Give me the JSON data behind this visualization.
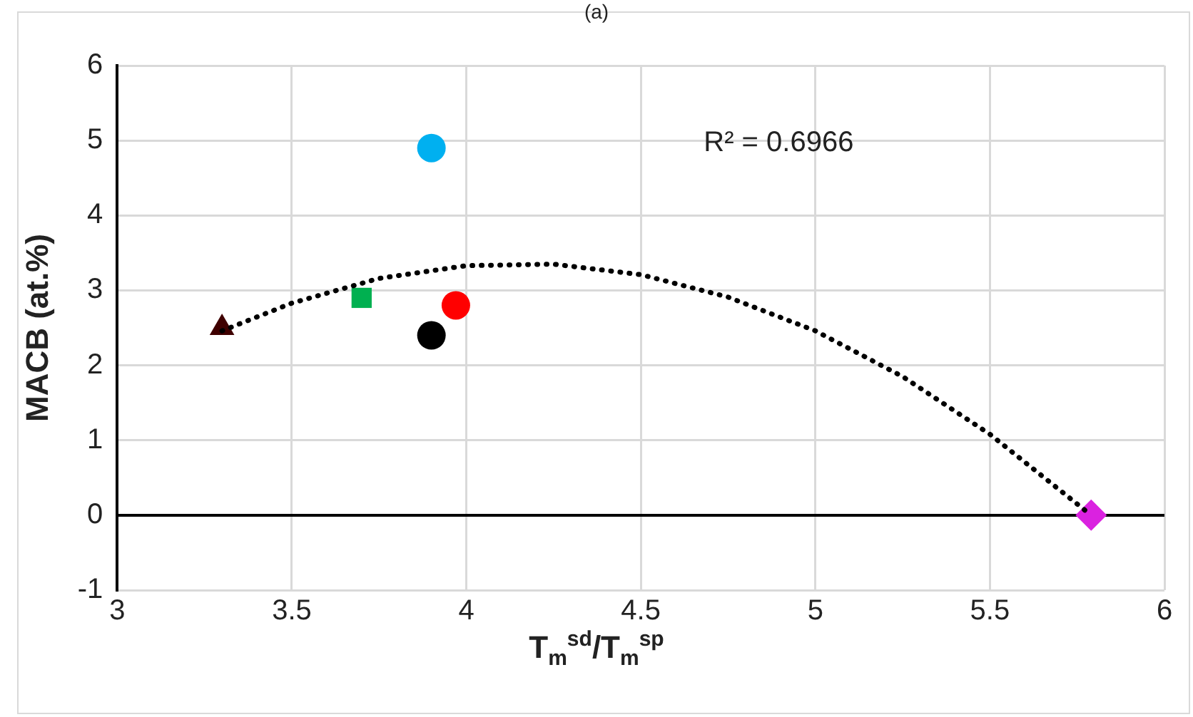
{
  "chart_data": {
    "type": "scatter",
    "title": "(a)",
    "xlabel": "T$_{m}$$^{sd}$/T$_{m}$$^{sp}$",
    "ylabel": "MACB (at.%)",
    "xlim": [
      3,
      6
    ],
    "xticks": [
      3,
      3.5,
      4,
      4.5,
      5,
      5.5,
      6
    ],
    "ylim": [
      -1,
      6
    ],
    "yticks": [
      -1,
      0,
      1,
      2,
      3,
      4,
      5,
      6
    ],
    "grid": true,
    "legend": false,
    "annotations": [
      "R² = 0.6966"
    ],
    "series": [
      {
        "type": "line",
        "color": "#000000",
        "marker": "none",
        "line_style": "dotted",
        "x": [
          3.3,
          3.5,
          3.75,
          4.0,
          4.25,
          4.5,
          4.75,
          5.0,
          5.25,
          5.5,
          5.79
        ],
        "values": [
          2.46,
          2.83,
          3.16,
          3.33,
          3.35,
          3.21,
          2.91,
          2.46,
          1.85,
          1.08,
          0
        ]
      },
      {
        "color": "#3f0000",
        "marker": "triangle",
        "x": [
          3.3
        ],
        "values": [
          2.5
        ]
      },
      {
        "color": "#00b050",
        "marker": "square",
        "x": [
          3.7
        ],
        "values": [
          2.9
        ]
      },
      {
        "color": "#00b0f0",
        "marker": "circle",
        "x": [
          3.9
        ],
        "values": [
          4.9
        ]
      },
      {
        "color": "#ff0000",
        "marker": "circle",
        "x": [
          3.97
        ],
        "values": [
          2.8
        ]
      },
      {
        "color": "#000000",
        "marker": "circle",
        "x": [
          3.9
        ],
        "values": [
          2.4
        ]
      },
      {
        "color": "#da22e0",
        "marker": "diamond",
        "x": [
          5.79
        ],
        "values": [
          0
        ]
      }
    ]
  }
}
